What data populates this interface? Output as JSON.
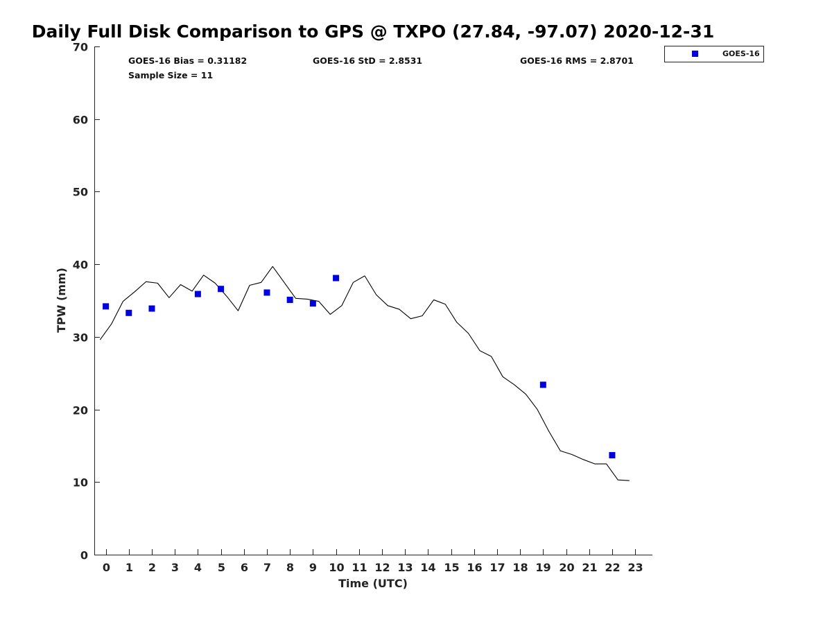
{
  "chart_data": {
    "type": "scatter",
    "title": "Daily Full Disk Comparison to GPS @ TXPO (27.84, -97.07) 2020-12-31",
    "xlabel": "Time (UTC)",
    "ylabel": "TPW (mm)",
    "xlim": [
      -0.5,
      23.75
    ],
    "ylim": [
      0,
      70
    ],
    "x_ticks": [
      0,
      1,
      2,
      3,
      4,
      5,
      6,
      7,
      8,
      9,
      10,
      11,
      12,
      13,
      14,
      15,
      16,
      17,
      18,
      19,
      20,
      21,
      22,
      23
    ],
    "y_ticks": [
      0,
      10,
      20,
      30,
      40,
      50,
      60,
      70
    ],
    "grid": false,
    "legend_position": "top-right",
    "stats": {
      "bias": "GOES-16 Bias = 0.31182",
      "std": "GOES-16 StD = 2.8531",
      "rms": "GOES-16 RMS = 2.8701",
      "sample": "Sample Size = 11"
    },
    "series": [
      {
        "name": "GOES-16",
        "kind": "scatter",
        "marker": "square",
        "color": "#0000e0",
        "x": [
          0,
          1,
          2,
          4,
          5,
          7,
          8,
          9,
          10,
          19,
          22
        ],
        "y": [
          34.2,
          33.3,
          33.9,
          35.9,
          36.6,
          36.1,
          35.1,
          34.6,
          38.1,
          23.4,
          13.7
        ]
      },
      {
        "kind": "line",
        "color": "#000000",
        "x": [
          -0.25,
          0.25,
          0.75,
          1.25,
          1.75,
          2.25,
          2.75,
          3.25,
          3.75,
          4.25,
          4.75,
          5.25,
          5.75,
          6.25,
          6.75,
          7.25,
          7.75,
          8.25,
          8.75,
          9.25,
          9.75,
          10.25,
          10.75,
          11.25,
          11.75,
          12.25,
          12.75,
          13.25,
          13.75,
          14.25,
          14.75,
          15.25,
          15.75,
          16.25,
          16.75,
          17.25,
          17.75,
          18.25,
          18.75,
          19.25,
          19.75,
          20.25,
          20.75,
          21.25,
          21.75,
          22.25,
          22.75
        ],
        "y": [
          29.6,
          31.8,
          34.9,
          36.2,
          37.6,
          37.4,
          35.4,
          37.2,
          36.3,
          38.5,
          37.4,
          35.6,
          33.6,
          37.1,
          37.5,
          39.7,
          37.5,
          35.3,
          35.2,
          34.9,
          33.1,
          34.3,
          37.5,
          38.4,
          35.8,
          34.3,
          33.8,
          32.5,
          32.9,
          35.1,
          34.5,
          32.0,
          30.5,
          28.1,
          27.3,
          24.5,
          23.4,
          22.1,
          20.0,
          17.0,
          14.3,
          13.8,
          13.1,
          12.5,
          12.5,
          10.3,
          10.2
        ]
      }
    ]
  }
}
